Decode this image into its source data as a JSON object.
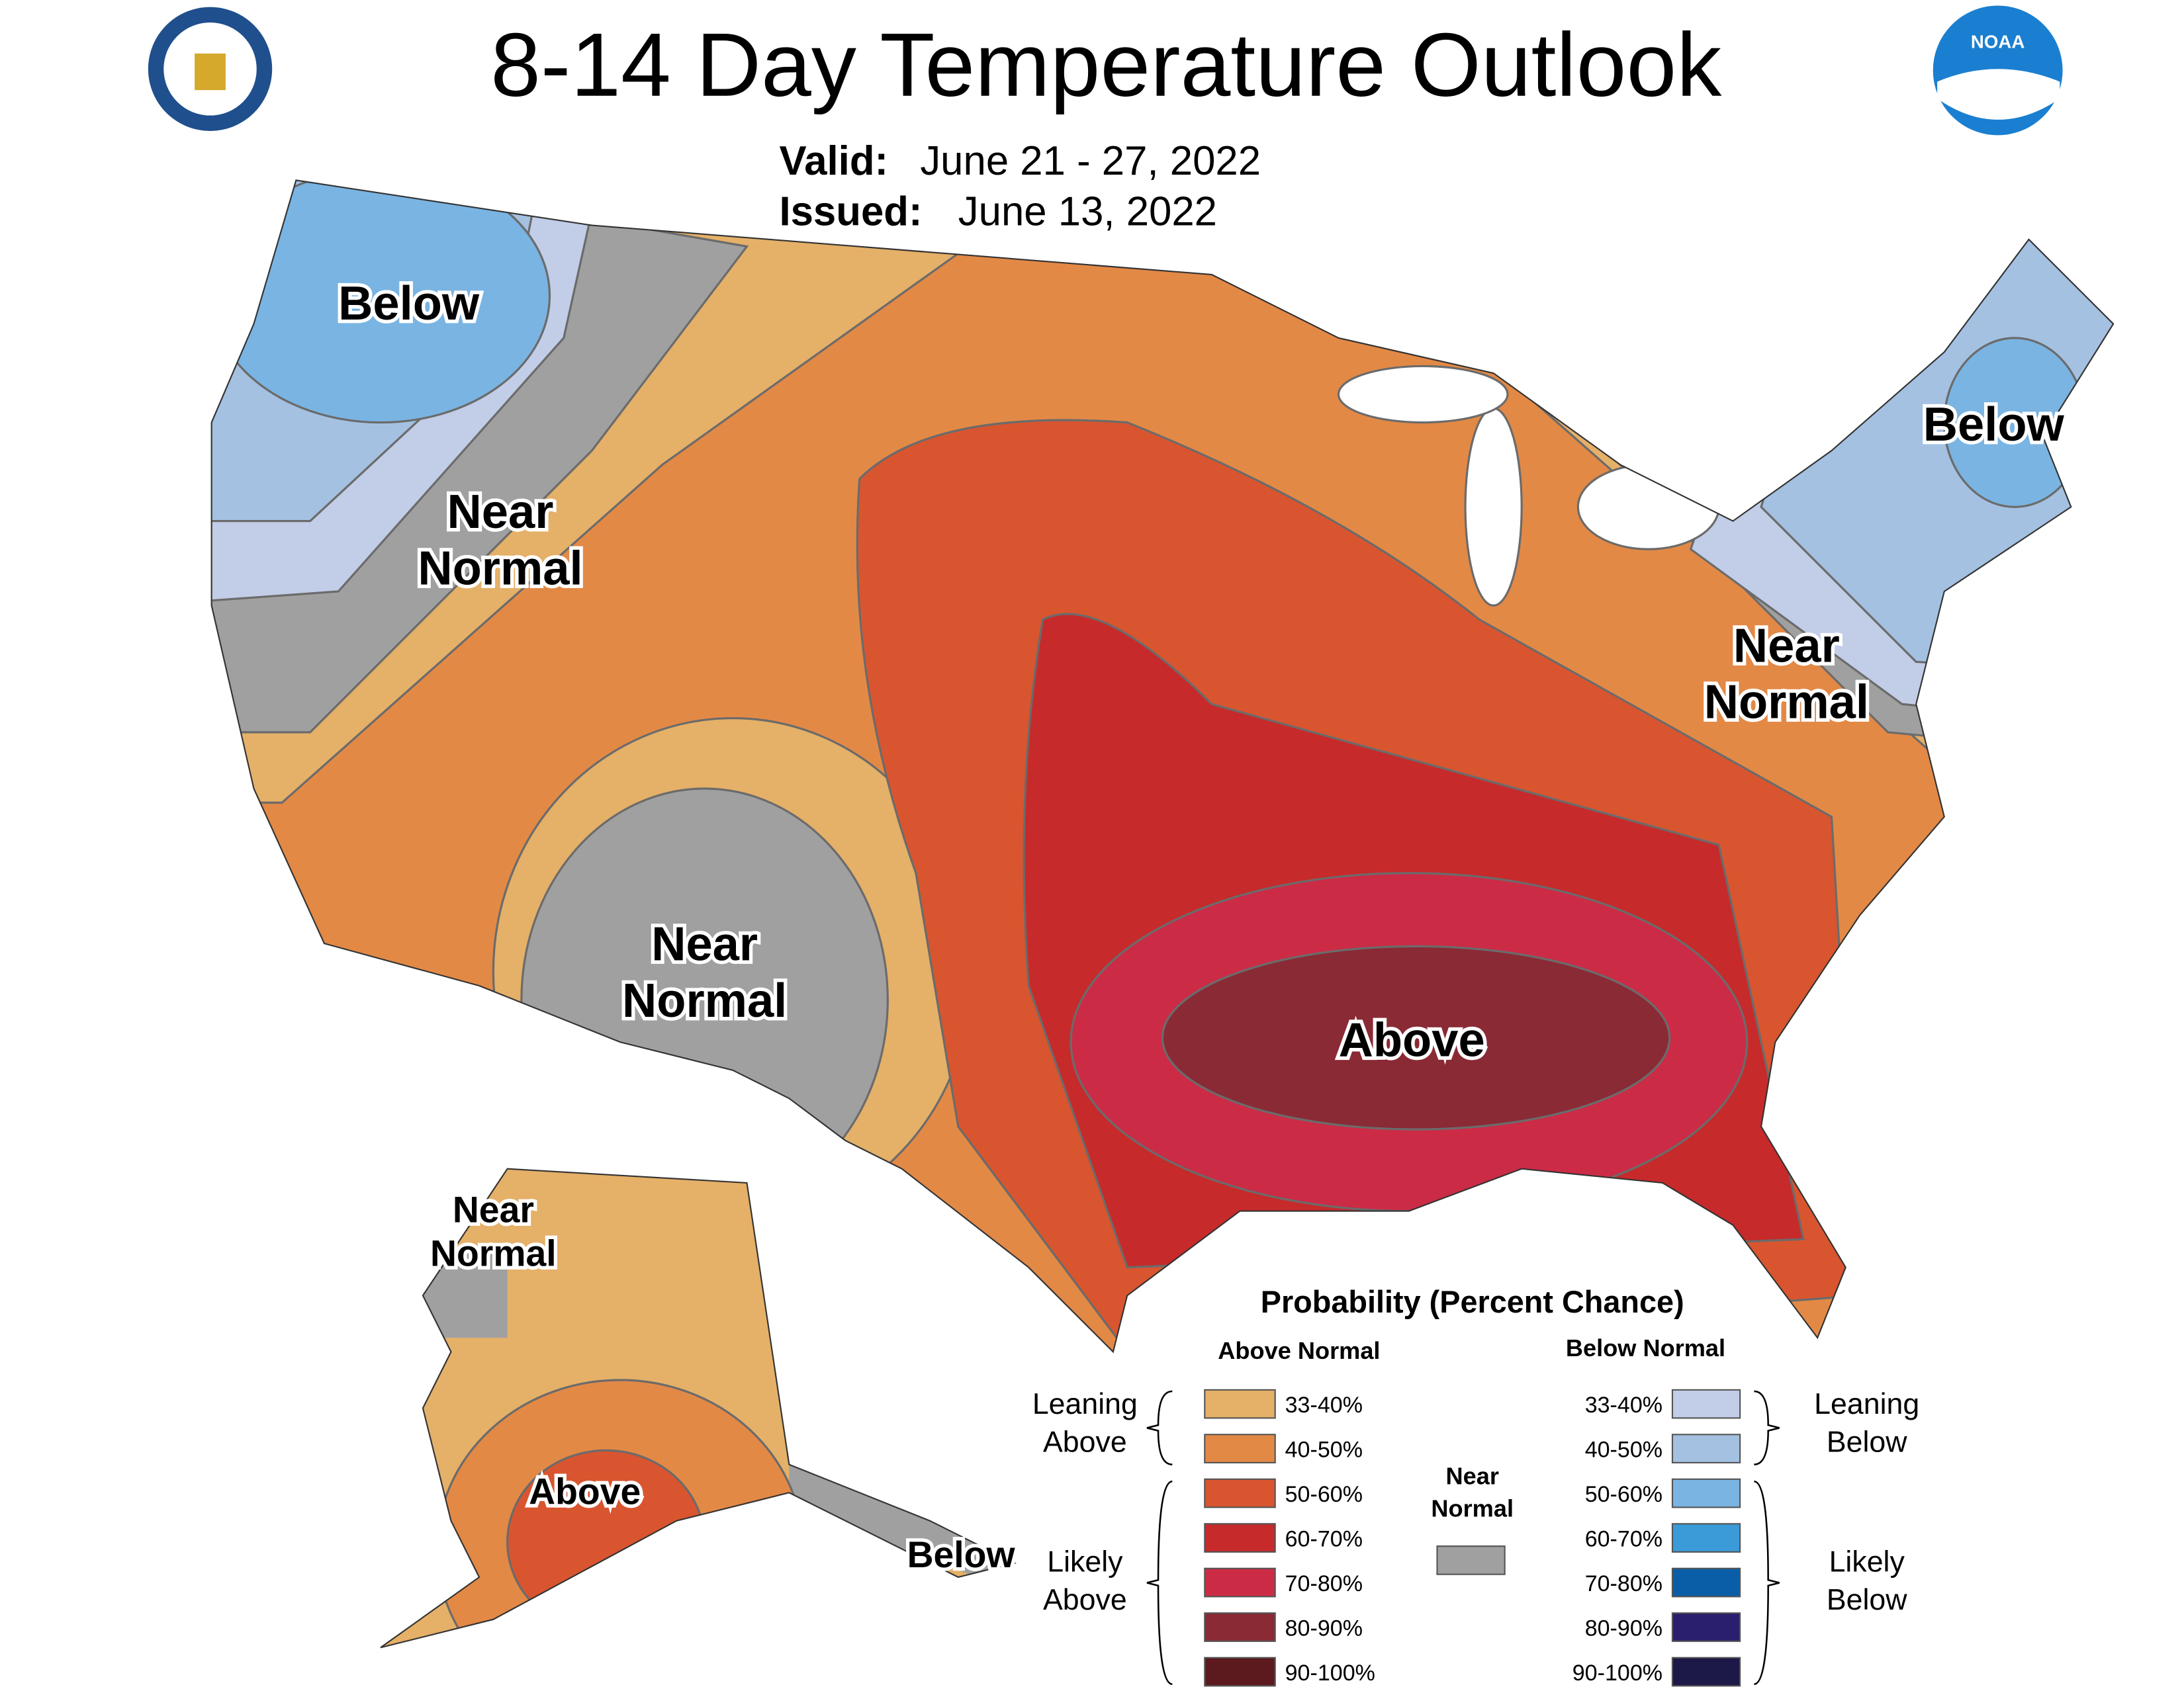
{
  "header": {
    "title": "8-14 Day Temperature Outlook",
    "valid_label": "Valid:",
    "valid_dates": "June 21 - 27, 2022",
    "issued_label": "Issued:",
    "issued_date": "June 13, 2022",
    "noaa_logo": "NOAA"
  },
  "map_labels": [
    {
      "lines": [
        "Below"
      ]
    },
    {
      "lines": [
        "Near",
        "Normal"
      ]
    },
    {
      "lines": [
        "Near",
        "Normal"
      ]
    },
    {
      "lines": [
        "Above"
      ]
    },
    {
      "lines": [
        "Below"
      ]
    },
    {
      "lines": [
        "Near",
        "Normal"
      ]
    },
    {
      "lines": [
        "Near",
        "Normal"
      ]
    },
    {
      "lines": [
        "Above"
      ]
    },
    {
      "lines": [
        "Below"
      ]
    }
  ],
  "legend": {
    "title": "Probability (Percent Chance)",
    "above_heading": "Above Normal",
    "below_heading": "Below Normal",
    "near_normal": [
      "Near",
      "Normal"
    ],
    "leaning_above": [
      "Leaning",
      "Above"
    ],
    "likely_above": [
      "Likely",
      "Above"
    ],
    "leaning_below": [
      "Leaning",
      "Below"
    ],
    "likely_below": [
      "Likely",
      "Below"
    ],
    "above": [
      {
        "label": "33-40%",
        "color": "#e5b068"
      },
      {
        "label": "40-50%",
        "color": "#e38946"
      },
      {
        "label": "50-60%",
        "color": "#d9552f"
      },
      {
        "label": "60-70%",
        "color": "#c72a2a"
      },
      {
        "label": "70-80%",
        "color": "#cc2b46"
      },
      {
        "label": "80-90%",
        "color": "#8a2a35"
      },
      {
        "label": "90-100%",
        "color": "#5c1a1f"
      }
    ],
    "near_color": "#a0a0a0",
    "below": [
      {
        "label": "33-40%",
        "color": "#c2cde8"
      },
      {
        "label": "40-50%",
        "color": "#a4c1e2"
      },
      {
        "label": "50-60%",
        "color": "#7ab4e2"
      },
      {
        "label": "60-70%",
        "color": "#3b9ad8"
      },
      {
        "label": "70-80%",
        "color": "#0a5ea8"
      },
      {
        "label": "80-90%",
        "color": "#2a1f6e"
      },
      {
        "label": "90-100%",
        "color": "#1c1848"
      }
    ]
  }
}
